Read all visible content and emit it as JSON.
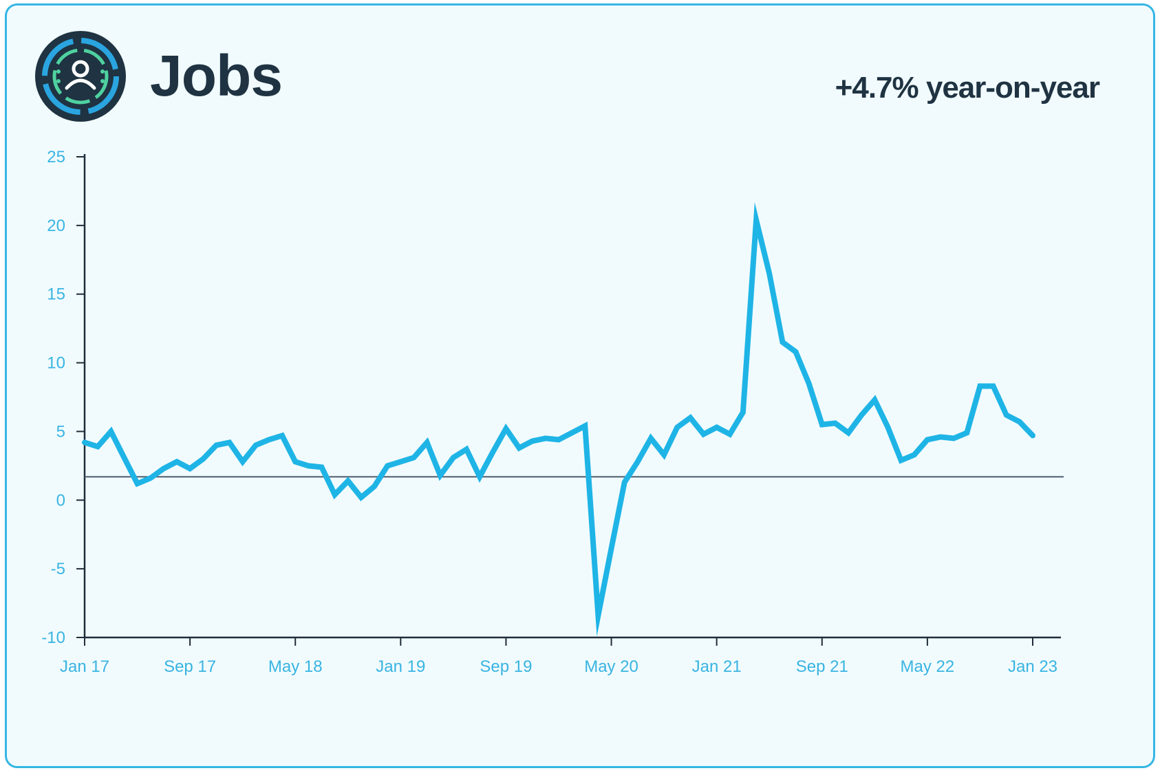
{
  "header": {
    "title": "Jobs",
    "logo_icon": "person-circle-icon",
    "yoy_text": "+4.7% year-on-year"
  },
  "colors": {
    "border": "#35b6e3",
    "background": "#f1fbfd",
    "line": "#1fb4e6",
    "axis": "#1f2d3a",
    "text": "#1f3342",
    "tick": "#39b4e2",
    "reference_line": "#4b5a6b"
  },
  "chart_data": {
    "type": "line",
    "title": "",
    "xlabel": "",
    "ylabel": "",
    "ylim": [
      -10,
      25
    ],
    "xlim": [
      "2017-01",
      "2023-01"
    ],
    "yticks": [
      25,
      20,
      15,
      10,
      5,
      0,
      -5,
      -10
    ],
    "xticks": [
      {
        "label": "Jan 17",
        "date": "2017-01"
      },
      {
        "label": "Sep 17",
        "date": "2017-09"
      },
      {
        "label": "May 18",
        "date": "2018-05"
      },
      {
        "label": "Jan 19",
        "date": "2019-01"
      },
      {
        "label": "Sep 19",
        "date": "2019-09"
      },
      {
        "label": "May 20",
        "date": "2020-05"
      },
      {
        "label": "Jan 21",
        "date": "2021-01"
      },
      {
        "label": "Sep 21",
        "date": "2021-09"
      },
      {
        "label": "May 22",
        "date": "2022-05"
      },
      {
        "label": "Jan 23",
        "date": "2023-01"
      }
    ],
    "reference_line": 1.7,
    "grid": false,
    "series": [
      {
        "x": [
          "2017-01",
          "2017-02",
          "2017-03",
          "2017-04",
          "2017-05",
          "2017-06",
          "2017-07",
          "2017-08",
          "2017-09",
          "2017-10",
          "2017-11",
          "2017-12",
          "2018-01",
          "2018-02",
          "2018-03",
          "2018-04",
          "2018-05",
          "2018-06",
          "2018-07",
          "2018-08",
          "2018-09",
          "2018-10",
          "2018-11",
          "2018-12",
          "2019-01",
          "2019-02",
          "2019-03",
          "2019-04",
          "2019-05",
          "2019-06",
          "2019-07",
          "2019-08",
          "2019-09",
          "2019-10",
          "2019-11",
          "2019-12",
          "2020-01",
          "2020-02",
          "2020-03",
          "2020-04",
          "2020-05",
          "2020-06",
          "2020-07",
          "2020-08",
          "2020-09",
          "2020-10",
          "2020-11",
          "2020-12",
          "2021-01",
          "2021-02",
          "2021-03",
          "2021-04",
          "2021-05",
          "2021-06",
          "2021-07",
          "2021-08",
          "2021-09",
          "2021-10",
          "2021-11",
          "2021-12",
          "2022-01",
          "2022-02",
          "2022-03",
          "2022-04",
          "2022-05",
          "2022-06",
          "2022-07",
          "2022-08",
          "2022-09",
          "2022-10",
          "2022-11",
          "2022-12",
          "2023-01"
        ],
        "y": [
          4.2,
          3.9,
          5.0,
          3.1,
          1.2,
          1.6,
          2.3,
          2.8,
          2.3,
          3.0,
          4.0,
          4.2,
          2.8,
          4.0,
          4.4,
          4.7,
          2.8,
          2.5,
          2.4,
          0.4,
          1.4,
          0.2,
          1.0,
          2.5,
          2.8,
          3.1,
          4.2,
          1.8,
          3.1,
          3.7,
          1.7,
          3.5,
          5.2,
          3.8,
          4.3,
          4.5,
          4.4,
          4.9,
          5.4,
          -8.4,
          -3.5,
          1.3,
          2.8,
          4.5,
          3.3,
          5.3,
          6.0,
          4.8,
          5.3,
          4.8,
          6.4,
          20.4,
          16.5,
          11.5,
          10.8,
          8.5,
          5.5,
          5.6,
          4.9,
          6.2,
          7.3,
          5.3,
          2.9,
          3.3,
          4.4,
          4.6,
          4.5,
          4.9,
          8.3,
          8.3,
          6.2,
          5.7,
          4.7
        ]
      }
    ]
  }
}
